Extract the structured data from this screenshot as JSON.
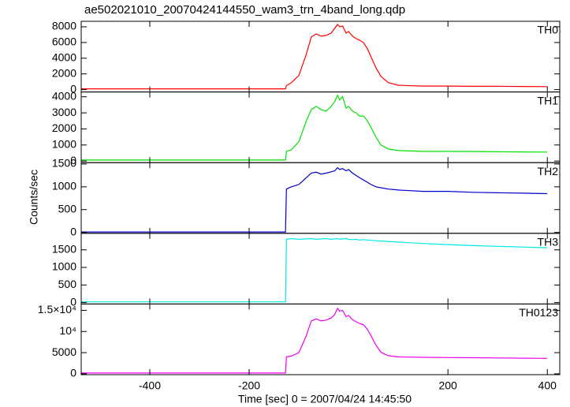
{
  "title": "ae502021010_20070424144550_wam3_trn_4band_long.qdp",
  "xlabel": "Time [sec] 0 = 2007/04/24 14:45:50",
  "ylabel": "Counts/sec",
  "chart_data": [
    {
      "type": "line",
      "label": "TH0",
      "color": "#ff0000",
      "x": [
        -538,
        -127,
        -125,
        -115,
        -100,
        -85,
        -75,
        -65,
        -55,
        -45,
        -35,
        -28,
        -22,
        -18,
        -12,
        -5,
        0,
        8,
        15,
        22,
        30,
        38,
        45,
        55,
        65,
        80,
        100,
        150,
        200,
        250,
        300,
        350,
        400
      ],
      "values": [
        100,
        100,
        500,
        900,
        1800,
        4500,
        6700,
        7100,
        6800,
        6900,
        7200,
        7800,
        8300,
        8000,
        8100,
        7200,
        7400,
        6800,
        6500,
        6300,
        6000,
        5200,
        4200,
        2800,
        1700,
        900,
        550,
        450,
        450,
        420,
        420,
        400,
        380
      ],
      "xlim": [
        -538,
        425
      ],
      "xticks": [
        -400,
        -200,
        200,
        400
      ],
      "ylim": [
        -300,
        8700
      ],
      "yticks": [
        0,
        2000,
        4000,
        6000,
        8000
      ]
    },
    {
      "type": "line",
      "label": "TH1",
      "color": "#00e000",
      "x": [
        -538,
        -127,
        -125,
        -115,
        -100,
        -85,
        -75,
        -65,
        -55,
        -45,
        -35,
        -28,
        -22,
        -18,
        -12,
        -5,
        0,
        8,
        15,
        22,
        30,
        38,
        45,
        55,
        65,
        80,
        100,
        150,
        200,
        250,
        300,
        350,
        400
      ],
      "values": [
        60,
        60,
        600,
        700,
        1200,
        2500,
        3200,
        3400,
        3200,
        3100,
        3400,
        3700,
        4100,
        3800,
        4000,
        3300,
        3400,
        3100,
        3000,
        2800,
        2800,
        2500,
        2100,
        1500,
        1000,
        750,
        650,
        600,
        600,
        590,
        580,
        570,
        560
      ],
      "xlim": [
        -538,
        425
      ],
      "xticks": [
        -400,
        -200,
        200,
        400
      ],
      "ylim": [
        -100,
        4300
      ],
      "yticks": [
        0,
        1000,
        2000,
        3000,
        4000
      ]
    },
    {
      "type": "line",
      "label": "TH2",
      "color": "#0000cc",
      "x": [
        -538,
        -127,
        -125,
        -115,
        -100,
        -85,
        -75,
        -65,
        -55,
        -45,
        -35,
        -28,
        -22,
        -18,
        -12,
        -5,
        0,
        8,
        15,
        22,
        30,
        38,
        45,
        55,
        65,
        80,
        100,
        150,
        200,
        250,
        300,
        350,
        400
      ],
      "values": [
        10,
        10,
        950,
        1000,
        1050,
        1200,
        1300,
        1320,
        1280,
        1300,
        1330,
        1350,
        1420,
        1380,
        1400,
        1350,
        1380,
        1300,
        1250,
        1200,
        1150,
        1100,
        1050,
        1000,
        980,
        950,
        930,
        900,
        900,
        880,
        870,
        860,
        850
      ],
      "xlim": [
        -538,
        425
      ],
      "xticks": [
        -400,
        -200,
        200,
        400
      ],
      "ylim": [
        -20,
        1530
      ],
      "yticks": [
        0,
        500,
        1000,
        1500
      ]
    },
    {
      "type": "line",
      "label": "TH3",
      "color": "#00e8e8",
      "x": [
        -538,
        -127,
        -125,
        -115,
        -100,
        -85,
        -75,
        -65,
        -55,
        -45,
        -35,
        -28,
        -22,
        -18,
        -12,
        -5,
        0,
        8,
        15,
        22,
        30,
        38,
        45,
        55,
        65,
        80,
        100,
        150,
        200,
        250,
        300,
        350,
        400
      ],
      "values": [
        20,
        20,
        1800,
        1820,
        1800,
        1810,
        1820,
        1800,
        1810,
        1820,
        1800,
        1810,
        1820,
        1800,
        1810,
        1820,
        1800,
        1790,
        1800,
        1780,
        1790,
        1780,
        1770,
        1760,
        1750,
        1740,
        1720,
        1680,
        1650,
        1620,
        1600,
        1580,
        1560
      ],
      "xlim": [
        -538,
        425
      ],
      "xticks": [
        -400,
        -200,
        200,
        400
      ],
      "ylim": [
        -40,
        1970
      ],
      "yticks": [
        0,
        500,
        1000,
        1500
      ]
    },
    {
      "type": "line",
      "label": "TH0123",
      "color": "#ee00ee",
      "x": [
        -538,
        -127,
        -125,
        -115,
        -100,
        -85,
        -75,
        -65,
        -55,
        -45,
        -35,
        -28,
        -22,
        -18,
        -12,
        -5,
        0,
        8,
        15,
        22,
        30,
        38,
        45,
        55,
        65,
        80,
        100,
        150,
        200,
        250,
        300,
        350,
        400
      ],
      "values": [
        200,
        200,
        4000,
        4200,
        5000,
        9000,
        12500,
        13000,
        12500,
        12700,
        13200,
        14000,
        15500,
        14800,
        15000,
        13500,
        13800,
        12800,
        12300,
        11900,
        11600,
        10500,
        9000,
        6800,
        5100,
        4300,
        4000,
        3900,
        3850,
        3800,
        3750,
        3700,
        3650
      ],
      "xlim": [
        -538,
        425
      ],
      "xticks": [
        -400,
        -200,
        200,
        400
      ],
      "ylim": [
        -200,
        16500
      ],
      "yticks": [
        0,
        5000,
        {
          "value": 10000,
          "label": "10⁴"
        },
        {
          "value": 15000,
          "label": "1.5×10⁴"
        }
      ]
    }
  ]
}
